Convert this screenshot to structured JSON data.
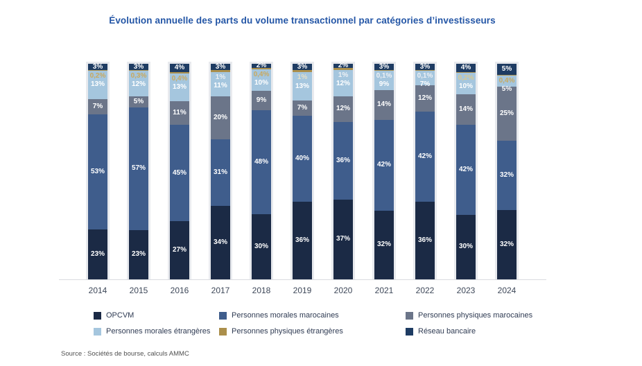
{
  "title": "Évolution  annuelle des parts du volume transactionnel par catégories d’investisseurs",
  "source": "Source : Sociétés de bourse, calculs AMMC",
  "chart_data": {
    "type": "bar",
    "stacked": true,
    "unit": "%",
    "ylim": [
      0,
      100
    ],
    "grid": false,
    "value_labels": "inside-white",
    "legend_position": "bottom",
    "categories": [
      "2014",
      "2015",
      "2016",
      "2017",
      "2018",
      "2019",
      "2020",
      "2021",
      "2022",
      "2023",
      "2024"
    ],
    "series": [
      {
        "id": "opcvm",
        "name": "OPCVM",
        "color": "#1b2a45",
        "values": [
          23,
          23,
          27,
          34,
          30,
          36,
          37,
          32,
          36,
          30,
          32
        ]
      },
      {
        "id": "pmm",
        "name": "Personnes morales marocaines",
        "color": "#3f5d8c",
        "values": [
          53,
          57,
          45,
          31,
          48,
          40,
          36,
          42,
          42,
          42,
          32
        ]
      },
      {
        "id": "ppm",
        "name": "Personnes physiques marocaines",
        "color": "#6b7589",
        "values": [
          7,
          5,
          11,
          20,
          9,
          7,
          12,
          14,
          12,
          14,
          25
        ]
      },
      {
        "id": "pme",
        "name": "Personnes morales étrangères",
        "color": "#a5c6de",
        "values": [
          13,
          12,
          13,
          11,
          10,
          13,
          12,
          9,
          7,
          10,
          5
        ]
      },
      {
        "id": "ppe",
        "name": "Personnes physiques étrangères",
        "color": "#ab8f4b",
        "values": [
          0.2,
          0.3,
          0.4,
          1,
          0.4,
          1,
          1,
          0.1,
          0.1,
          0.2,
          0.4
        ],
        "display_labels": [
          "0,2%",
          "0,3%",
          "0,4%",
          "1%",
          "0,4%",
          "1%",
          "1%",
          "0,1%",
          "0,1%",
          "0,2%",
          "0,4%"
        ],
        "label_colors": [
          "#c9a95f",
          "#c9a95f",
          "#c9a95f",
          "#edf0f4",
          "#c9a95f",
          "#e6e0c8",
          "#edf0f4",
          "#edf0f4",
          "#edf0f4",
          "#d9c98f",
          "#c9a95f"
        ]
      },
      {
        "id": "rb",
        "name": "Réseau bancaire",
        "color": "#1e3c63",
        "values": [
          3,
          3,
          4,
          3,
          2,
          3,
          2,
          3,
          3,
          4,
          5
        ]
      }
    ]
  },
  "legend": {
    "items": [
      {
        "label": "OPCVM",
        "color": "#1b2a45"
      },
      {
        "label": "Personnes morales marocaines",
        "color": "#3f5d8c"
      },
      {
        "label": "Personnes physiques marocaines",
        "color": "#6b7589"
      },
      {
        "label": "Personnes morales étrangères",
        "color": "#a5c6de"
      },
      {
        "label": "Personnes physiques étrangères",
        "color": "#ab8f4b"
      },
      {
        "label": "Réseau bancaire",
        "color": "#1e3c63"
      }
    ]
  }
}
